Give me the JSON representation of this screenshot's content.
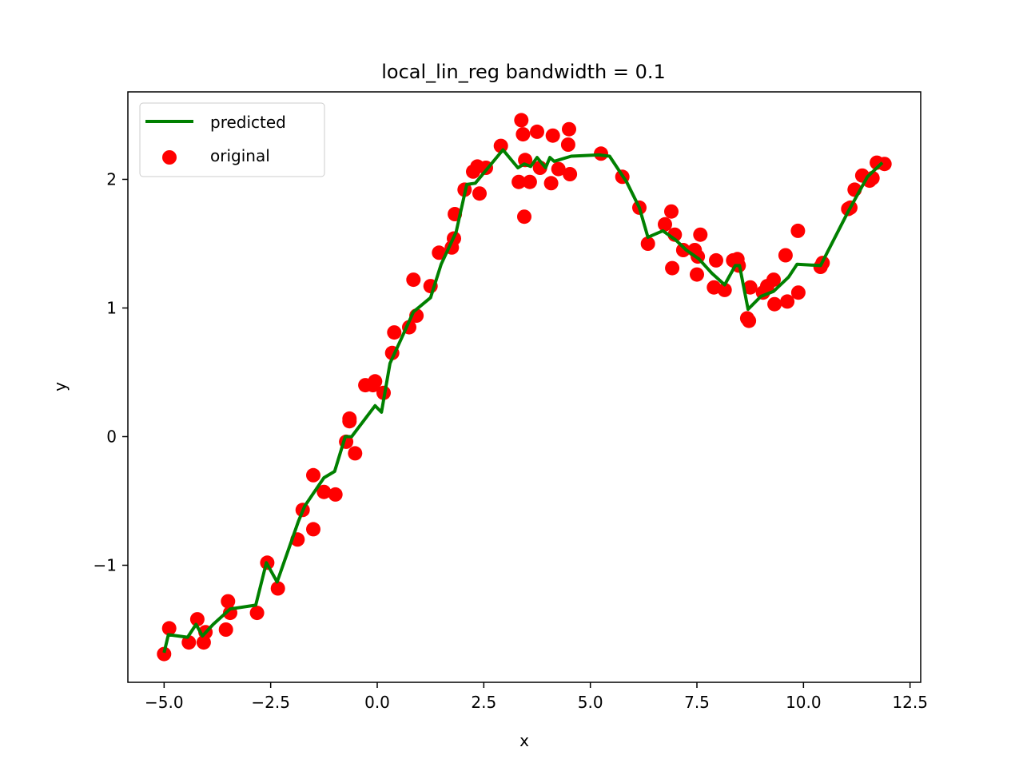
{
  "chart_data": {
    "type": "scatter",
    "title": "local_lin_reg bandwidth = 0.1",
    "xlabel": "x",
    "ylabel": "y",
    "xlim": [
      -5.85,
      12.75
    ],
    "ylim": [
      -1.91,
      2.68
    ],
    "xticks": [
      -5.0,
      -2.5,
      0.0,
      2.5,
      5.0,
      7.5,
      10.0,
      12.5
    ],
    "xtick_labels": [
      "−5.0",
      "−2.5",
      "0.0",
      "2.5",
      "5.0",
      "7.5",
      "10.0",
      "12.5"
    ],
    "yticks": [
      -1,
      0,
      1,
      2
    ],
    "ytick_labels": [
      "−1",
      "0",
      "1",
      "2"
    ],
    "grid": false,
    "legend_position": "top-left",
    "series": [
      {
        "name": "predicted",
        "kind": "line",
        "color": "#008000",
        "points": [
          [
            -5.0,
            -1.68
          ],
          [
            -4.9,
            -1.54
          ],
          [
            -4.45,
            -1.56
          ],
          [
            -4.25,
            -1.46
          ],
          [
            -4.1,
            -1.55
          ],
          [
            -3.85,
            -1.46
          ],
          [
            -3.45,
            -1.34
          ],
          [
            -2.85,
            -1.31
          ],
          [
            -2.6,
            -0.98
          ],
          [
            -2.35,
            -1.13
          ],
          [
            -1.85,
            -0.66
          ],
          [
            -1.7,
            -0.54
          ],
          [
            -1.25,
            -0.32
          ],
          [
            -1.0,
            -0.27
          ],
          [
            -0.75,
            0.0
          ],
          [
            -0.6,
            0.0
          ],
          [
            -0.05,
            0.24
          ],
          [
            0.1,
            0.19
          ],
          [
            0.3,
            0.57
          ],
          [
            0.55,
            0.75
          ],
          [
            0.85,
            0.97
          ],
          [
            1.25,
            1.08
          ],
          [
            1.5,
            1.34
          ],
          [
            1.85,
            1.59
          ],
          [
            2.1,
            1.96
          ],
          [
            2.3,
            1.97
          ],
          [
            2.6,
            2.09
          ],
          [
            2.95,
            2.23
          ],
          [
            3.3,
            2.09
          ],
          [
            3.45,
            2.12
          ],
          [
            3.6,
            2.1
          ],
          [
            3.75,
            2.17
          ],
          [
            3.95,
            2.09
          ],
          [
            4.05,
            2.17
          ],
          [
            4.15,
            2.14
          ],
          [
            4.55,
            2.18
          ],
          [
            5.2,
            2.19
          ],
          [
            5.45,
            2.18
          ],
          [
            5.85,
            1.98
          ],
          [
            6.15,
            1.78
          ],
          [
            6.35,
            1.55
          ],
          [
            6.7,
            1.6
          ],
          [
            7.0,
            1.53
          ],
          [
            7.25,
            1.45
          ],
          [
            7.55,
            1.38
          ],
          [
            7.85,
            1.27
          ],
          [
            8.15,
            1.18
          ],
          [
            8.4,
            1.33
          ],
          [
            8.5,
            1.33
          ],
          [
            8.7,
            0.99
          ],
          [
            9.0,
            1.09
          ],
          [
            9.3,
            1.13
          ],
          [
            9.65,
            1.24
          ],
          [
            9.85,
            1.34
          ],
          [
            10.4,
            1.33
          ],
          [
            11.05,
            1.75
          ],
          [
            11.5,
            2.02
          ],
          [
            11.85,
            2.13
          ]
        ]
      },
      {
        "name": "original",
        "kind": "scatter",
        "color": "#ff0000",
        "points": [
          [
            -5.0,
            -1.69
          ],
          [
            -4.88,
            -1.49
          ],
          [
            -4.42,
            -1.6
          ],
          [
            -4.22,
            -1.42
          ],
          [
            -4.07,
            -1.6
          ],
          [
            -4.03,
            -1.52
          ],
          [
            -3.55,
            -1.5
          ],
          [
            -3.5,
            -1.28
          ],
          [
            -3.45,
            -1.37
          ],
          [
            -2.82,
            -1.37
          ],
          [
            -2.58,
            -0.98
          ],
          [
            -2.33,
            -1.18
          ],
          [
            -1.87,
            -0.8
          ],
          [
            -1.75,
            -0.57
          ],
          [
            -1.5,
            -0.3
          ],
          [
            -1.5,
            -0.72
          ],
          [
            -1.25,
            -0.43
          ],
          [
            -0.98,
            -0.45
          ],
          [
            -0.73,
            -0.04
          ],
          [
            -0.65,
            0.12
          ],
          [
            -0.65,
            0.14
          ],
          [
            -0.52,
            -0.13
          ],
          [
            -0.28,
            0.4
          ],
          [
            -0.1,
            0.4
          ],
          [
            -0.05,
            0.43
          ],
          [
            0.15,
            0.34
          ],
          [
            0.35,
            0.65
          ],
          [
            0.4,
            0.81
          ],
          [
            0.75,
            0.85
          ],
          [
            0.85,
            1.22
          ],
          [
            0.92,
            0.94
          ],
          [
            1.25,
            1.17
          ],
          [
            1.45,
            1.43
          ],
          [
            1.75,
            1.47
          ],
          [
            1.8,
            1.54
          ],
          [
            1.82,
            1.73
          ],
          [
            2.05,
            1.92
          ],
          [
            2.25,
            2.06
          ],
          [
            2.35,
            2.1
          ],
          [
            2.4,
            1.89
          ],
          [
            2.55,
            2.09
          ],
          [
            2.9,
            2.26
          ],
          [
            3.32,
            1.98
          ],
          [
            3.38,
            2.46
          ],
          [
            3.42,
            2.35
          ],
          [
            3.45,
            1.71
          ],
          [
            3.47,
            2.15
          ],
          [
            3.58,
            1.98
          ],
          [
            3.75,
            2.37
          ],
          [
            3.82,
            2.09
          ],
          [
            4.08,
            1.97
          ],
          [
            4.12,
            2.34
          ],
          [
            4.25,
            2.08
          ],
          [
            4.48,
            2.27
          ],
          [
            4.5,
            2.39
          ],
          [
            4.52,
            2.04
          ],
          [
            5.25,
            2.2
          ],
          [
            5.75,
            2.02
          ],
          [
            6.15,
            1.78
          ],
          [
            6.35,
            1.5
          ],
          [
            6.75,
            1.65
          ],
          [
            6.9,
            1.75
          ],
          [
            6.92,
            1.31
          ],
          [
            6.98,
            1.57
          ],
          [
            7.18,
            1.45
          ],
          [
            7.45,
            1.45
          ],
          [
            7.5,
            1.26
          ],
          [
            7.52,
            1.4
          ],
          [
            7.58,
            1.57
          ],
          [
            7.9,
            1.16
          ],
          [
            7.95,
            1.37
          ],
          [
            8.15,
            1.14
          ],
          [
            8.35,
            1.37
          ],
          [
            8.45,
            1.38
          ],
          [
            8.48,
            1.33
          ],
          [
            8.68,
            0.92
          ],
          [
            8.72,
            0.9
          ],
          [
            8.75,
            1.16
          ],
          [
            9.05,
            1.12
          ],
          [
            9.15,
            1.17
          ],
          [
            9.3,
            1.22
          ],
          [
            9.32,
            1.03
          ],
          [
            9.58,
            1.41
          ],
          [
            9.62,
            1.05
          ],
          [
            9.87,
            1.6
          ],
          [
            9.88,
            1.12
          ],
          [
            10.4,
            1.32
          ],
          [
            10.45,
            1.35
          ],
          [
            11.05,
            1.77
          ],
          [
            11.1,
            1.78
          ],
          [
            11.2,
            1.92
          ],
          [
            11.38,
            2.03
          ],
          [
            11.55,
            1.99
          ],
          [
            11.62,
            2.01
          ],
          [
            11.72,
            2.13
          ],
          [
            11.9,
            2.12
          ]
        ]
      }
    ]
  }
}
